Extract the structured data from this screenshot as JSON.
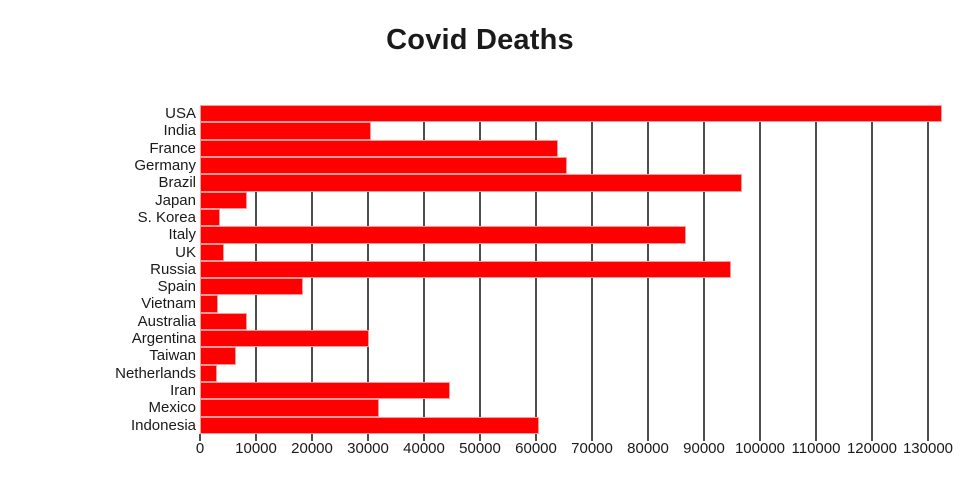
{
  "chart_data": {
    "type": "bar",
    "orientation": "horizontal",
    "title": "Covid Deaths",
    "xlabel": "",
    "ylabel": "",
    "categories": [
      "USA",
      "India",
      "France",
      "Germany",
      "Brazil",
      "Japan",
      "S. Korea",
      "Italy",
      "UK",
      "Russia",
      "Spain",
      "Vietnam",
      "Australia",
      "Argentina",
      "Taiwan",
      "Netherlands",
      "Iran",
      "Mexico",
      "Indonesia"
    ],
    "values": [
      132500,
      30500,
      64000,
      65500,
      96700,
      8450,
      3500,
      86700,
      4200,
      94900,
      18400,
      3200,
      8450,
      30200,
      6450,
      3100,
      44700,
      32000,
      60600
    ],
    "xticks": [
      0,
      10000,
      20000,
      30000,
      40000,
      50000,
      60000,
      70000,
      80000,
      90000,
      100000,
      110000,
      120000,
      130000
    ],
    "xlim": [
      0,
      135700
    ],
    "grid": "vertical-only",
    "legend": "none",
    "colors": {
      "bar": "#fe0000",
      "bar_border": "#ff9a9a",
      "gridline": "#4d4d4d",
      "text": "#1a1a1a",
      "background": "#ffffff"
    }
  }
}
